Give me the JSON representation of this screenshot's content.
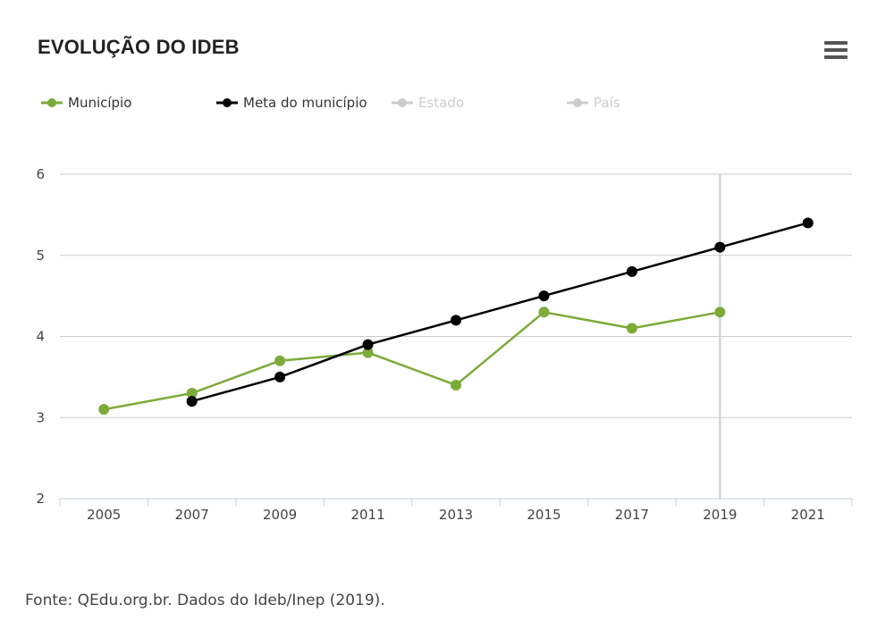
{
  "header": {
    "title": "EVOLUÇÃO DO IDEB"
  },
  "menu_icon": "hamburger-menu-icon",
  "legend": [
    {
      "label": "Município",
      "color": "#7cab3a",
      "visible": true
    },
    {
      "label": "Meta do município",
      "color": "#000000",
      "visible": true
    },
    {
      "label": "Estado",
      "color": "#cccccc",
      "visible": false
    },
    {
      "label": "País",
      "color": "#cccccc",
      "visible": false
    }
  ],
  "chart_data": {
    "type": "line",
    "x": [
      "2005",
      "2007",
      "2009",
      "2011",
      "2013",
      "2015",
      "2017",
      "2019",
      "2021"
    ],
    "series": [
      {
        "name": "Município",
        "color": "#7cab3a",
        "values": [
          3.1,
          3.3,
          3.7,
          3.8,
          3.4,
          4.3,
          4.1,
          4.3,
          null
        ]
      },
      {
        "name": "Meta do município",
        "color": "#000000",
        "values": [
          null,
          3.2,
          3.5,
          3.9,
          4.2,
          4.5,
          4.8,
          5.1,
          5.4
        ]
      }
    ],
    "ylim": [
      2,
      6
    ],
    "yticks": [
      "2",
      "3",
      "4",
      "5",
      "6"
    ],
    "grid": true,
    "highlight_x": "2019",
    "legend_position": "top-left"
  },
  "footer": {
    "source": "Fonte: QEdu.org.br. Dados do Ideb/Inep (2019)."
  }
}
